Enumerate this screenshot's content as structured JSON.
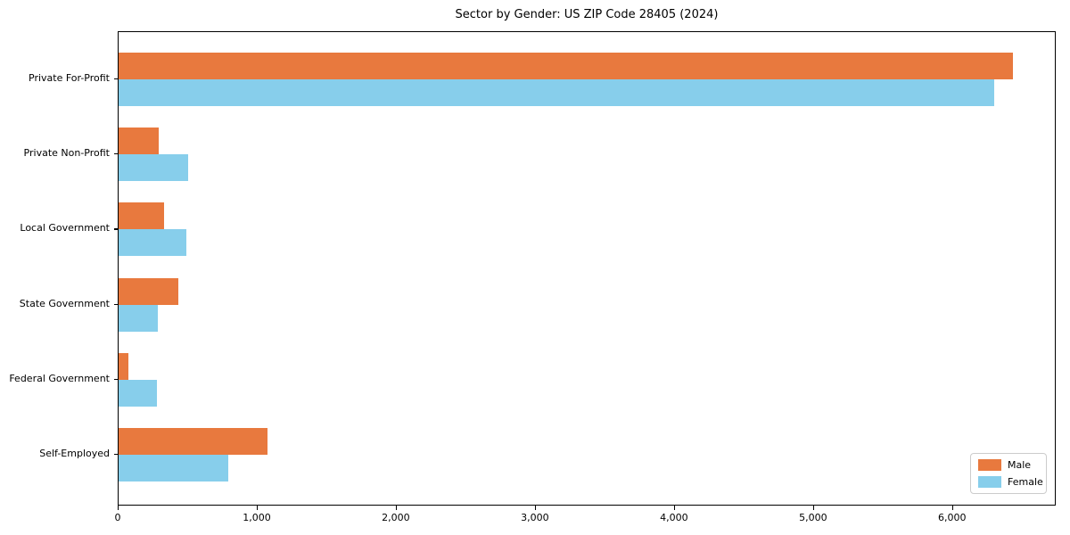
{
  "chart_data": {
    "type": "bar",
    "orientation": "horizontal",
    "title": "Sector by Gender: US ZIP Code 28405 (2024)",
    "categories": [
      "Private For-Profit",
      "Private Non-Profit",
      "Local Government",
      "State Government",
      "Federal Government",
      "Self-Employed"
    ],
    "series": [
      {
        "name": "Male",
        "color": "#e8793e",
        "values": [
          6430,
          290,
          330,
          430,
          70,
          1070
        ]
      },
      {
        "name": "Female",
        "color": "#87ceeb",
        "values": [
          6295,
          500,
          490,
          280,
          275,
          790
        ]
      }
    ],
    "xlabel": "",
    "ylabel": "",
    "xlim": [
      0,
      6745
    ],
    "x_ticks": [
      {
        "value": 0,
        "label": "0"
      },
      {
        "value": 1000,
        "label": "1,000"
      },
      {
        "value": 2000,
        "label": "2,000"
      },
      {
        "value": 3000,
        "label": "3,000"
      },
      {
        "value": 4000,
        "label": "4,000"
      },
      {
        "value": 5000,
        "label": "5,000"
      },
      {
        "value": 6000,
        "label": "6,000"
      }
    ],
    "grid": false,
    "legend_position": "lower right",
    "axis_color": "#000000",
    "background_color": "#ffffff"
  }
}
